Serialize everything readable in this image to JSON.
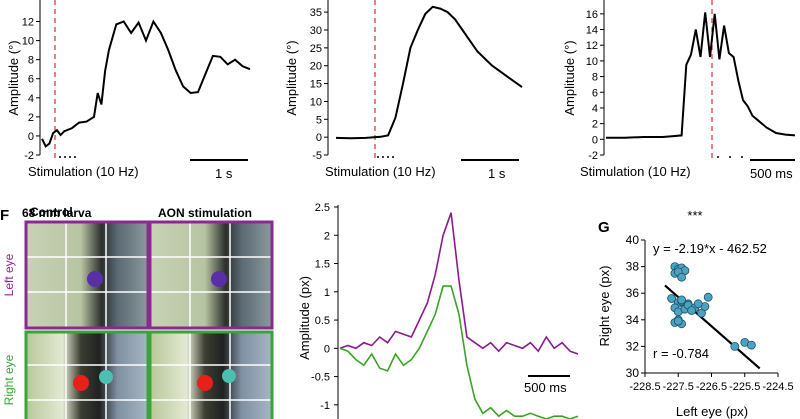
{
  "top_panels": [
    {
      "ylabel": "Amplitude (°)",
      "yticks": [
        "-2",
        "0",
        "2",
        "4",
        "6",
        "8",
        "10",
        "12"
      ],
      "stim_label": "Stimulation (10 Hz)",
      "scale_label": "1 s"
    },
    {
      "ylabel": "Amplitude (°)",
      "yticks": [
        "-5",
        "0",
        "5",
        "10",
        "15",
        "20",
        "25",
        "30",
        "35"
      ],
      "stim_label": "Stimulation (10 Hz)",
      "scale_label": "1 s"
    },
    {
      "ylabel": "Amplitude (°)",
      "yticks": [
        "-2",
        "0",
        "2",
        "4",
        "6",
        "8",
        "10",
        "12",
        "14",
        "16"
      ],
      "stim_label": "Stimulation (10 Hz)",
      "scale_label": "500 ms"
    }
  ],
  "panel_f": {
    "letter": "F",
    "title": "68 mm larva",
    "col_control": "Control",
    "col_aon": "AON stimulation",
    "row_left": "Left eye",
    "row_right": "Right eye",
    "colors": {
      "left_frame": "#8b2a8e",
      "right_frame": "#3aa33a",
      "purple_dot": "#5a2ea6",
      "red_dot": "#e8201a",
      "teal_dot": "#4cc0b0"
    }
  },
  "amp_plot": {
    "ylabel": "Amplitude (px)",
    "yticks": [
      "2.5",
      "2",
      "1.5",
      "1",
      "0.5",
      "0",
      "-0.5",
      "-1"
    ],
    "scale_label": "500 ms",
    "series_colors": {
      "left": "#8b1a8e",
      "right": "#3aa325"
    }
  },
  "panel_g": {
    "letter": "G",
    "significance": "***",
    "equation": "y = -2.19*x - 462.52",
    "r_value": "r = -0.784",
    "xlabel": "Left eye (px)",
    "ylabel": "Right eye (px)",
    "xticks": [
      "-228.5",
      "-227.5",
      "-226.5",
      "-225.5",
      "-224.5"
    ],
    "yticks": [
      "40",
      "38",
      "36",
      "34",
      "32",
      "30"
    ],
    "point_color": "#4aa3c0"
  },
  "chart_data": [
    {
      "type": "line",
      "xlabel": "",
      "ylabel": "Amplitude (°)",
      "ylim": [
        -2,
        13
      ],
      "x": [
        0,
        0.05,
        0.1,
        0.15,
        0.2,
        0.25,
        0.3,
        0.4,
        0.5,
        0.6,
        0.7,
        0.75,
        0.8,
        0.85,
        0.9,
        1.0,
        1.1,
        1.2,
        1.3,
        1.4,
        1.5,
        1.6,
        1.7,
        1.8,
        1.9,
        2.0,
        2.1,
        2.2,
        2.3,
        2.4,
        2.5,
        2.6,
        2.7,
        2.8
      ],
      "series": [
        {
          "values": [
            -0.3,
            -1.1,
            -0.8,
            0.3,
            0.6,
            0.1,
            0.5,
            0.8,
            1.4,
            1.5,
            2.0,
            4.5,
            3.3,
            6.8,
            9.0,
            11.7,
            12.0,
            10.8,
            11.9,
            10.0,
            12.0,
            10.8,
            9.0,
            6.9,
            5.2,
            4.5,
            4.6,
            6.5,
            8.4,
            8.3,
            7.5,
            8.0,
            7.3,
            7.0
          ]
        }
      ]
    },
    {
      "type": "line",
      "xlabel": "",
      "ylabel": "Amplitude (°)",
      "ylim": [
        -5,
        37
      ],
      "x": [
        0,
        0.2,
        0.4,
        0.6,
        0.7,
        0.8,
        0.9,
        1.0,
        1.1,
        1.2,
        1.3,
        1.4,
        1.5,
        1.6,
        1.7,
        1.8,
        1.9,
        2.0,
        2.1,
        2.2,
        2.3,
        2.4,
        2.5
      ],
      "series": [
        {
          "values": [
            -0.2,
            -0.3,
            -0.2,
            0.1,
            0.5,
            5.5,
            15,
            25,
            30,
            34.5,
            36.5,
            36,
            35,
            33,
            30,
            27,
            24,
            22,
            20,
            18.5,
            17,
            15.5,
            14
          ]
        }
      ]
    },
    {
      "type": "line",
      "xlabel": "",
      "ylabel": "Amplitude (°)",
      "ylim": [
        -2,
        17
      ],
      "x": [
        0,
        0.2,
        0.4,
        0.6,
        0.7,
        0.8,
        0.85,
        0.9,
        0.95,
        1.0,
        1.05,
        1.1,
        1.15,
        1.2,
        1.25,
        1.3,
        1.35,
        1.4,
        1.45,
        1.5,
        1.55,
        1.6,
        1.7,
        1.8,
        1.9,
        2.0
      ],
      "series": [
        {
          "values": [
            0.2,
            0.2,
            0.3,
            0.3,
            0.4,
            0.5,
            9.5,
            10.8,
            14,
            10.5,
            16.2,
            10.5,
            16.0,
            10.2,
            14.5,
            11,
            10.5,
            7.5,
            5,
            4.2,
            3,
            2.5,
            1.5,
            0.8,
            0.6,
            0.5
          ]
        }
      ]
    },
    {
      "type": "line",
      "xlabel": "",
      "ylabel": "Amplitude (px)",
      "ylim": [
        -1.2,
        2.5
      ],
      "x": [
        0,
        0.1,
        0.2,
        0.3,
        0.4,
        0.5,
        0.6,
        0.7,
        0.8,
        0.9,
        1.0,
        1.1,
        1.2,
        1.3,
        1.4,
        1.5,
        1.6,
        1.7,
        1.8,
        1.9,
        2.0,
        2.1,
        2.2,
        2.3,
        2.4,
        2.5,
        2.6,
        2.7,
        2.8,
        2.9,
        3.0
      ],
      "series": [
        {
          "values": [
            0.0,
            0.05,
            0.0,
            0.1,
            0.05,
            0.2,
            0.1,
            0.3,
            0.25,
            0.2,
            0.5,
            0.8,
            1.3,
            2.0,
            2.4,
            1.2,
            0.2,
            0.1,
            0.0,
            0.1,
            -0.05,
            0.1,
            0.05,
            0.0,
            0.1,
            -0.05,
            0.2,
            0.0,
            0.1,
            -0.05,
            -0.1
          ]
        },
        {
          "values": [
            0.0,
            -0.05,
            -0.2,
            -0.3,
            -0.1,
            -0.35,
            -0.4,
            -0.1,
            -0.3,
            -0.2,
            0.0,
            0.3,
            0.6,
            1.1,
            1.1,
            0.6,
            -0.3,
            -0.9,
            -1.15,
            -1.05,
            -1.2,
            -1.1,
            -1.2,
            -1.2,
            -1.15,
            -1.2,
            -1.25,
            -1.2,
            -1.2,
            -1.25,
            -1.2
          ]
        }
      ]
    },
    {
      "type": "scatter",
      "title": "",
      "xlabel": "Left eye (px)",
      "ylabel": "Right eye (px)",
      "xlim": [
        -228.5,
        -224.5
      ],
      "ylim": [
        30,
        40
      ],
      "x": [
        -227.6,
        -227.5,
        -227.4,
        -227.3,
        -227.6,
        -227.5,
        -227.4,
        -227.7,
        -227.5,
        -227.3,
        -227.4,
        -227.2,
        -227.6,
        -227.5,
        -227.4,
        -227.3,
        -227.2,
        -227.5,
        -227.4,
        -227.6,
        -226.8,
        -226.7,
        -227.0,
        -226.6,
        -225.8,
        -225.5,
        -225.3,
        -226.9,
        -227.1,
        -227.5
      ],
      "series": [
        {
          "values": [
            38.0,
            37.8,
            37.9,
            37.7,
            37.5,
            37.6,
            37.2,
            35.6,
            35.3,
            35.0,
            35.4,
            35.2,
            34.9,
            34.6,
            35.5,
            34.8,
            35.1,
            34.0,
            33.7,
            33.8,
            34.5,
            35.0,
            34.9,
            35.7,
            32.0,
            32.3,
            32.1,
            35.2,
            34.7,
            33.9
          ]
        }
      ],
      "fit": {
        "slope": -2.19,
        "intercept": -462.52
      }
    }
  ]
}
